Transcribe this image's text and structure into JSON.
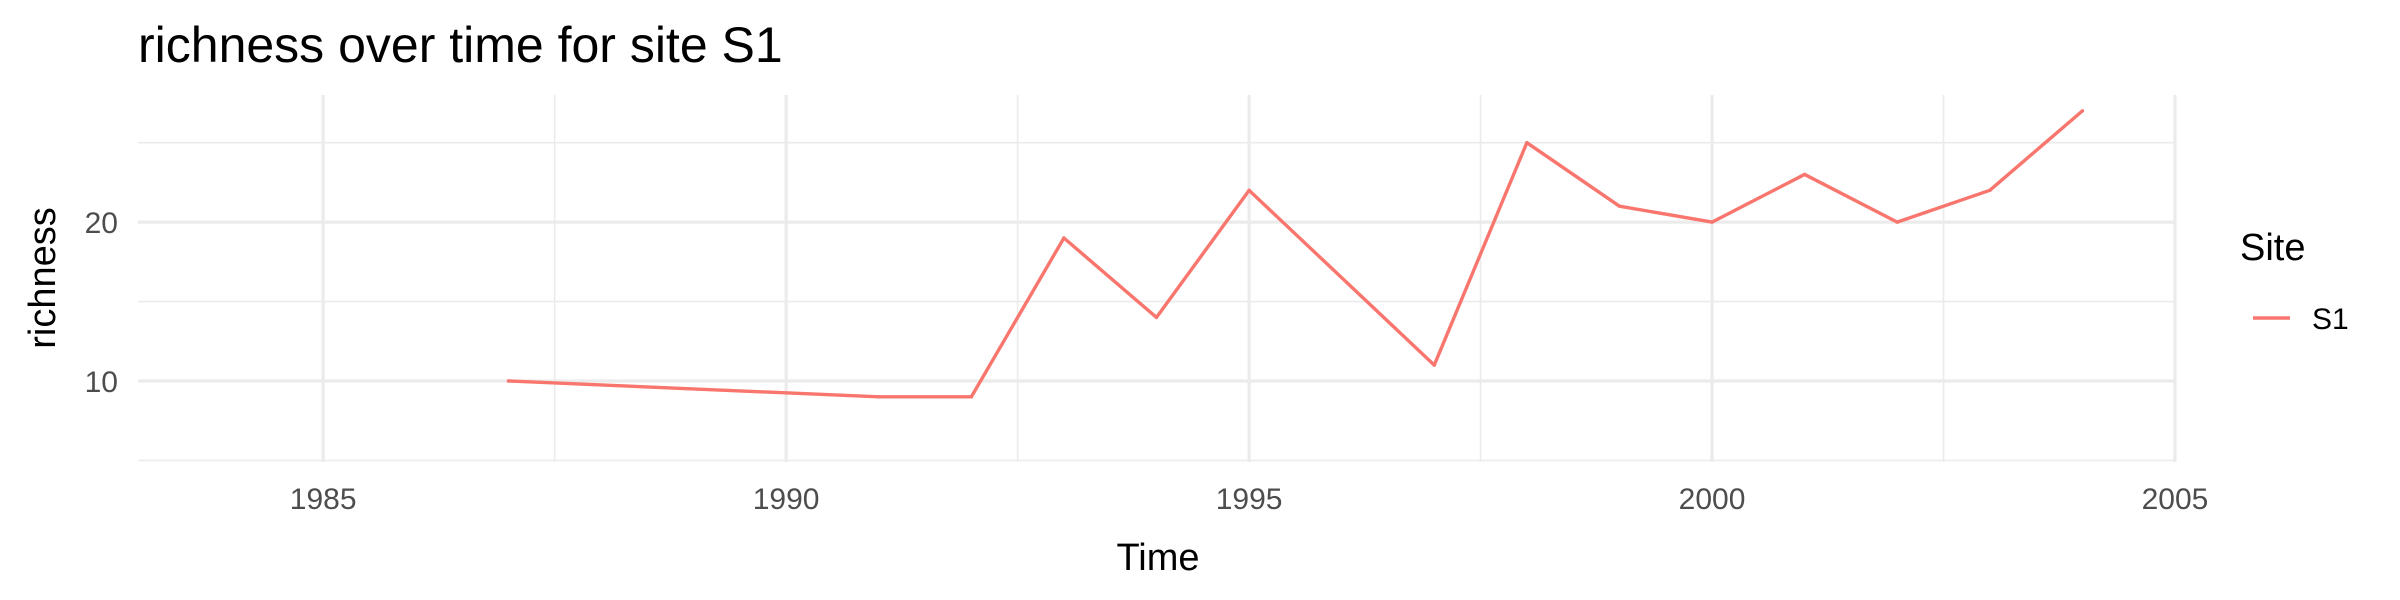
{
  "chart_data": {
    "type": "line",
    "title": "richness over time for site S1",
    "xlabel": "Time",
    "ylabel": "richness",
    "xlim": [
      1983,
      2005
    ],
    "ylim": [
      4.9,
      28
    ],
    "x_ticks": [
      1985,
      1990,
      1995,
      2000,
      2005
    ],
    "y_ticks": [
      10,
      20
    ],
    "grid": true,
    "legend": {
      "title": "Site",
      "position": "right"
    },
    "series": [
      {
        "name": "S1",
        "color": "#F8766D",
        "x": [
          1987,
          1991,
          1992,
          1993,
          1994,
          1995,
          1997,
          1998,
          1999,
          2000,
          2001,
          2002,
          2003,
          2004
        ],
        "y": [
          10,
          9,
          9,
          19,
          14,
          22,
          11,
          25,
          21,
          20,
          23,
          20,
          22,
          27
        ]
      }
    ]
  }
}
